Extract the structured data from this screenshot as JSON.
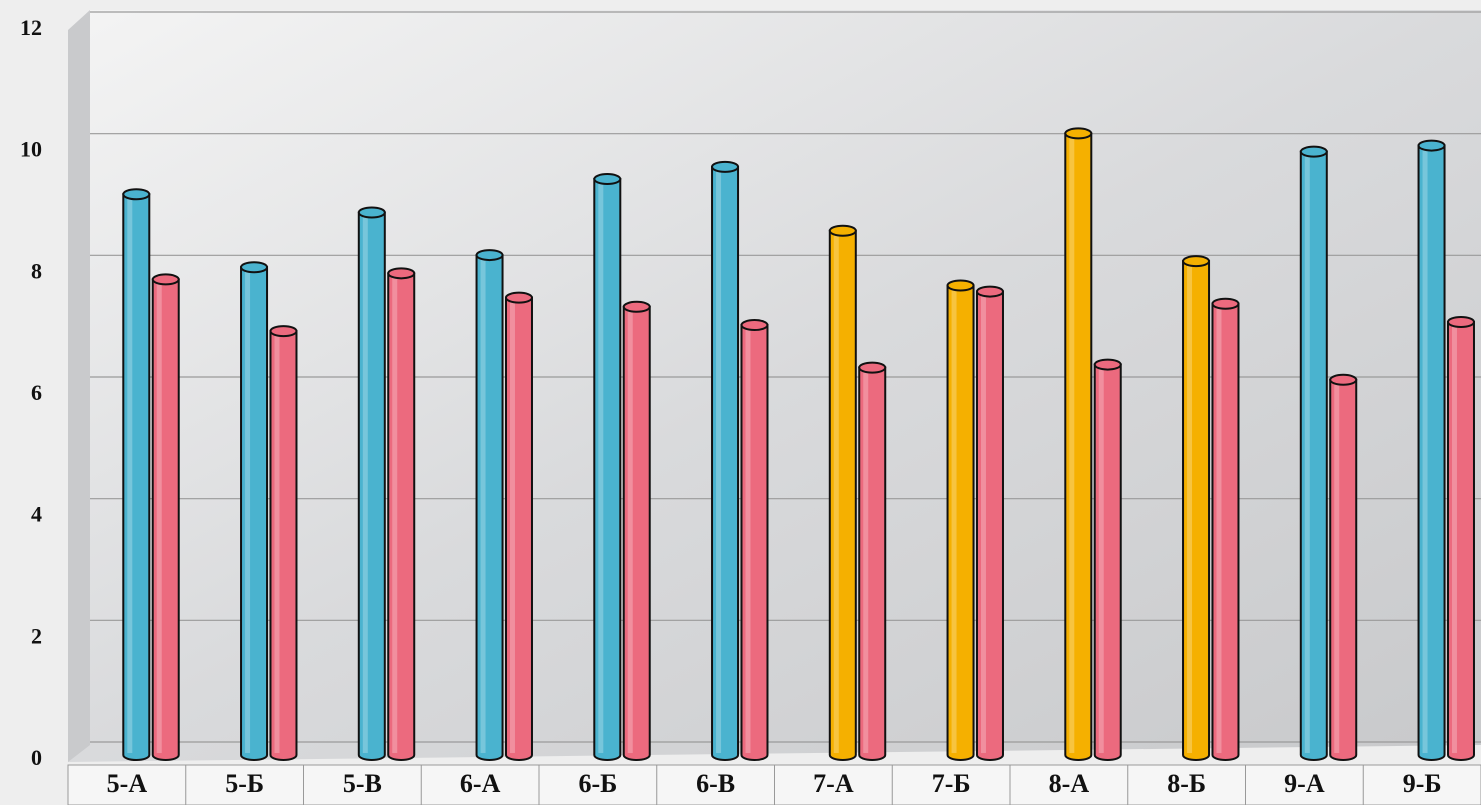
{
  "chart_data": {
    "type": "bar",
    "categories": [
      "5-А",
      "5-Б",
      "5-В",
      "6-А",
      "6-Б",
      "6-В",
      "7-А",
      "7-Б",
      "8-А",
      "8-Б",
      "9-А",
      "9-Б"
    ],
    "series": [
      {
        "colors": [
          "#4ab3cf",
          "#4ab3cf",
          "#4ab3cf",
          "#4ab3cf",
          "#4ab3cf",
          "#4ab3cf",
          "#f5b000",
          "#f5b000",
          "#f5b000",
          "#f5b000",
          "#4ab3cf",
          "#4ab3cf"
        ],
        "values": [
          9.3,
          8.1,
          9.0,
          8.3,
          9.55,
          9.75,
          8.7,
          7.8,
          10.3,
          8.2,
          10.0,
          10.1
        ]
      },
      {
        "color": "#ec6a7e",
        "values": [
          7.9,
          7.05,
          8.0,
          7.6,
          7.45,
          7.15,
          6.45,
          7.7,
          6.5,
          7.5,
          6.25,
          7.2
        ]
      }
    ],
    "ylim": [
      0,
      12
    ],
    "yticks": [
      0,
      2,
      4,
      6,
      8,
      10,
      12
    ],
    "grid": true
  }
}
